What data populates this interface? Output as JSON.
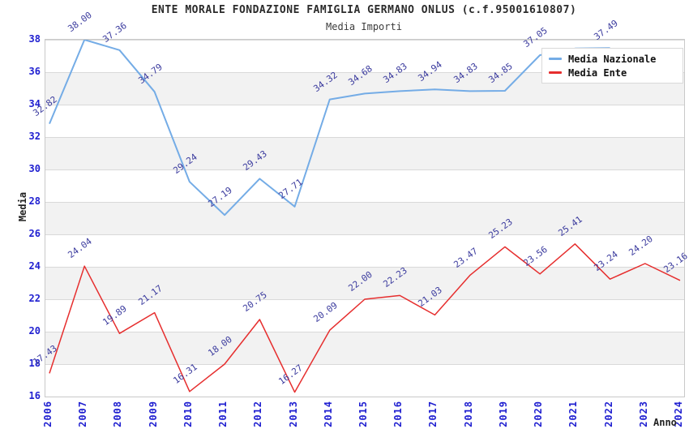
{
  "title": "ENTE MORALE FONDAZIONE FAMIGLIA GERMANO ONLUS (c.f.95001610807)",
  "subtitle": "Media Importi",
  "colors": {
    "nazionale": "#74ace6",
    "ente": "#e62e2e",
    "tick_label": "#1f1fd0",
    "data_label": "#3b3b9e",
    "band_gray": "#f2f2f2",
    "gridline": "#d9d9d9",
    "plot_border": "#c9c9c9"
  },
  "legend": {
    "items": [
      {
        "label": "Media Nazionale",
        "color_key": "nazionale"
      },
      {
        "label": "Media Ente",
        "color_key": "ente"
      }
    ]
  },
  "axes": {
    "y_title": "Media",
    "x_title": "Anno",
    "y_min": 16,
    "y_max": 38,
    "y_ticks": [
      16,
      18,
      20,
      22,
      24,
      26,
      28,
      30,
      32,
      34,
      36,
      38
    ],
    "x_categories": [
      "2006",
      "2007",
      "2008",
      "2009",
      "2010",
      "2011",
      "2012",
      "2013",
      "2014",
      "2015",
      "2016",
      "2017",
      "2018",
      "2019",
      "2020",
      "2021",
      "2022",
      "2023",
      "2024"
    ]
  },
  "chart_data": {
    "type": "line",
    "title": "ENTE MORALE FONDAZIONE FAMIGLIA GERMANO ONLUS (c.f.95001610807)",
    "subtitle": "Media Importi",
    "xlabel": "Anno",
    "ylabel": "Media",
    "ylim": [
      16,
      38
    ],
    "grid": true,
    "legend_position": "top-right-overlay",
    "categories": [
      "2006",
      "2007",
      "2008",
      "2009",
      "2010",
      "2011",
      "2012",
      "2013",
      "2014",
      "2015",
      "2016",
      "2017",
      "2018",
      "2019",
      "2020",
      "2021",
      "2022",
      "2023",
      "2024"
    ],
    "series": [
      {
        "name": "Media Nazionale",
        "color_key": "nazionale",
        "values": [
          32.82,
          38.0,
          37.36,
          34.79,
          29.24,
          27.19,
          29.43,
          27.71,
          34.32,
          34.68,
          34.83,
          34.94,
          34.83,
          34.85,
          37.05,
          37.46,
          37.49,
          null,
          null
        ],
        "hidden_label_years": [
          "2021"
        ]
      },
      {
        "name": "Media Ente",
        "color_key": "ente",
        "values": [
          17.43,
          24.04,
          19.89,
          21.17,
          16.31,
          18.0,
          20.75,
          16.27,
          20.09,
          22.0,
          22.23,
          21.03,
          23.47,
          25.23,
          23.56,
          25.41,
          23.24,
          24.2,
          23.16
        ],
        "hidden_label_years": []
      }
    ]
  }
}
